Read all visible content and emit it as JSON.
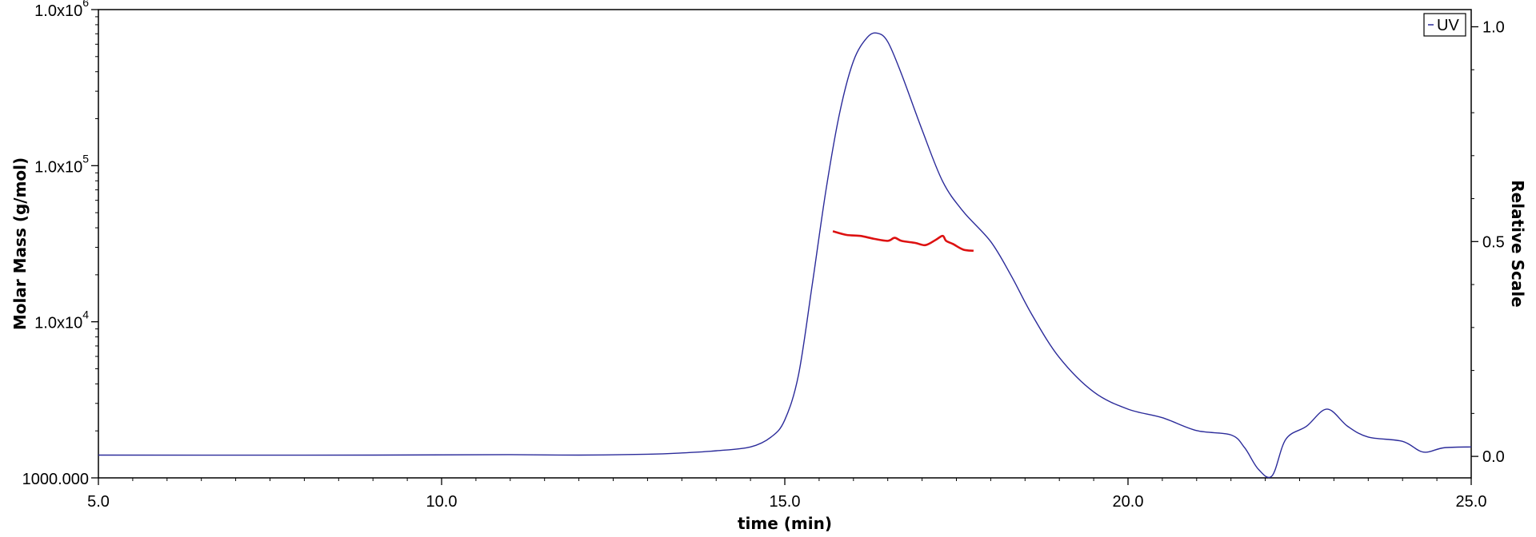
{
  "chart_data": {
    "type": "line",
    "xlabel": "time (min)",
    "ylabel_left": "Molar Mass (g/mol)",
    "ylabel_right": "Relative Scale",
    "x_ticks": [
      "5.0",
      "10.0",
      "15.0",
      "20.0",
      "25.0"
    ],
    "xlim": [
      5.0,
      25.0
    ],
    "y_left": {
      "scale": "log",
      "ylim": [
        1000,
        1000000
      ],
      "ticks": [
        {
          "value": 1000,
          "label": "1000.000"
        },
        {
          "value": 10000,
          "mantissa": "1.0x10",
          "exp": "4"
        },
        {
          "value": 100000,
          "mantissa": "1.0x10",
          "exp": "5"
        },
        {
          "value": 1000000,
          "mantissa": "1.0x10",
          "exp": "6"
        }
      ]
    },
    "y_right": {
      "ylim": [
        -0.05,
        1.04
      ],
      "ticks": [
        "0.0",
        "0.5",
        "1.0"
      ]
    },
    "legend": {
      "label": "UV",
      "position": "top-right"
    },
    "grid": false,
    "series": [
      {
        "name": "UV",
        "axis": "right",
        "color": "#2b2b9a",
        "x": [
          5.0,
          9.0,
          11.0,
          12.0,
          13.0,
          13.5,
          14.0,
          14.5,
          14.8,
          15.0,
          15.2,
          15.4,
          15.6,
          15.8,
          16.0,
          16.2,
          16.35,
          16.5,
          16.7,
          17.0,
          17.3,
          17.6,
          18.0,
          18.3,
          18.6,
          19.0,
          19.5,
          20.0,
          20.5,
          21.0,
          21.5,
          21.7,
          21.9,
          22.1,
          22.3,
          22.6,
          22.9,
          23.2,
          23.5,
          24.0,
          24.3,
          24.6,
          25.0
        ],
        "y": [
          0.003,
          0.003,
          0.004,
          0.003,
          0.005,
          0.008,
          0.013,
          0.022,
          0.045,
          0.085,
          0.19,
          0.4,
          0.62,
          0.8,
          0.92,
          0.975,
          0.985,
          0.965,
          0.89,
          0.76,
          0.64,
          0.57,
          0.5,
          0.42,
          0.33,
          0.23,
          0.15,
          0.11,
          0.09,
          0.06,
          0.05,
          0.02,
          -0.03,
          -0.045,
          0.04,
          0.07,
          0.11,
          0.07,
          0.045,
          0.035,
          0.01,
          0.02,
          0.022
        ]
      },
      {
        "name": "Molar Mass",
        "axis": "left",
        "color": "#dd1111",
        "x": [
          15.7,
          15.9,
          16.1,
          16.3,
          16.5,
          16.6,
          16.7,
          16.9,
          17.05,
          17.2,
          17.3,
          17.35,
          17.45,
          17.6,
          17.75
        ],
        "y": [
          38000,
          36000,
          35500,
          34000,
          33000,
          34500,
          33000,
          32000,
          31000,
          33500,
          35500,
          33000,
          31500,
          29000,
          28500
        ]
      }
    ]
  }
}
